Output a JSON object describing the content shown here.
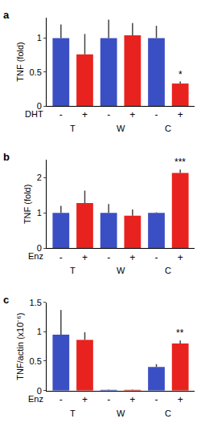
{
  "chart_data": [
    {
      "type": "bar",
      "title": "a",
      "y_label": "TNF (fold)",
      "treatment": "DHT",
      "categories": [
        "-",
        "+",
        "-",
        "+",
        "-",
        "+"
      ],
      "group_labels": [
        "T",
        "W",
        "C"
      ],
      "values": [
        1.0,
        0.76,
        1.0,
        1.04,
        1.0,
        0.33
      ],
      "errors": [
        0.2,
        0.3,
        0.27,
        0.18,
        0.18,
        0.03
      ],
      "colors": [
        "#3b4fc4",
        "#e8231f",
        "#3b4fc4",
        "#e8231f",
        "#3b4fc4",
        "#e8231f"
      ],
      "ylim": [
        0,
        1.3
      ],
      "yticks": [
        0,
        0.5,
        1
      ],
      "annotations": [
        {
          "text": "*",
          "index": 5
        }
      ]
    },
    {
      "type": "bar",
      "title": "b",
      "y_label": "TNF (fold)",
      "treatment": "Enz",
      "categories": [
        "-",
        "+",
        "-",
        "+",
        "-",
        "+"
      ],
      "group_labels": [
        "T",
        "W",
        "C"
      ],
      "values": [
        1.0,
        1.28,
        1.0,
        0.92,
        1.0,
        2.13
      ],
      "errors": [
        0.2,
        0.35,
        0.25,
        0.18,
        0.02,
        0.1
      ],
      "colors": [
        "#3b4fc4",
        "#e8231f",
        "#3b4fc4",
        "#e8231f",
        "#3b4fc4",
        "#e8231f"
      ],
      "ylim": [
        0,
        2.5
      ],
      "yticks": [
        0,
        1,
        2
      ],
      "annotations": [
        {
          "text": "***",
          "index": 5
        }
      ]
    },
    {
      "type": "bar",
      "title": "c",
      "y_label": "TNF/actin (x10⁻⁶)",
      "treatment": "Enz",
      "categories": [
        "-",
        "+",
        "-",
        "+",
        "-",
        "+"
      ],
      "group_labels": [
        "T",
        "W",
        "C"
      ],
      "values": [
        0.95,
        0.86,
        0.01,
        0.01,
        0.4,
        0.8
      ],
      "errors": [
        0.42,
        0.13,
        0.005,
        0.005,
        0.05,
        0.05
      ],
      "colors": [
        "#3b4fc4",
        "#e8231f",
        "#3b4fc4",
        "#e8231f",
        "#3b4fc4",
        "#e8231f"
      ],
      "ylim": [
        0,
        1.5
      ],
      "yticks": [
        0,
        0.5,
        1,
        1.5
      ],
      "annotations": [
        {
          "text": "**",
          "index": 5
        }
      ]
    }
  ]
}
